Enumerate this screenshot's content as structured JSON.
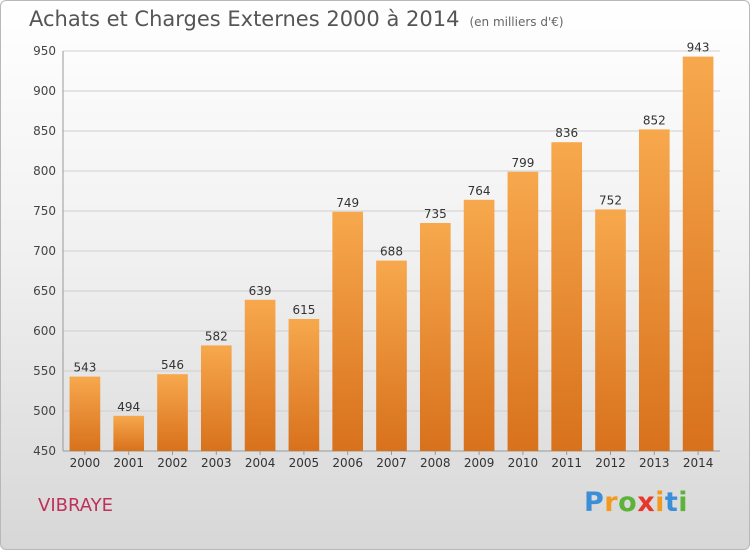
{
  "title": "Achats et Charges Externes 2000 à 2014",
  "subtitle": "(en milliers d'€)",
  "commune": "VIBRAYE",
  "logo": {
    "letters": [
      "P",
      "r",
      "o",
      "x",
      "i",
      "t",
      "i"
    ],
    "colors": [
      "#3b8fd6",
      "#f39a1e",
      "#5db33a",
      "#e8362a",
      "#f39a1e",
      "#3b8fd6",
      "#5db33a"
    ]
  },
  "colors": {
    "bar_top": "#f7a84d",
    "bar_bottom": "#d8711c",
    "grid": "#cfcfcf",
    "title": "#555555",
    "commune": "#c0305a"
  },
  "chart_data": {
    "type": "bar",
    "categories": [
      "2000",
      "2001",
      "2002",
      "2003",
      "2004",
      "2005",
      "2006",
      "2007",
      "2008",
      "2009",
      "2010",
      "2011",
      "2012",
      "2013",
      "2014"
    ],
    "values": [
      543,
      494,
      546,
      582,
      639,
      615,
      749,
      688,
      735,
      764,
      799,
      836,
      752,
      852,
      943
    ],
    "ylim": [
      450,
      950
    ],
    "yticks": [
      450,
      500,
      550,
      600,
      650,
      700,
      750,
      800,
      850,
      900,
      950
    ],
    "grid": true,
    "title": "Achats et Charges Externes 2000 à 2014",
    "xlabel": "",
    "ylabel": ""
  }
}
